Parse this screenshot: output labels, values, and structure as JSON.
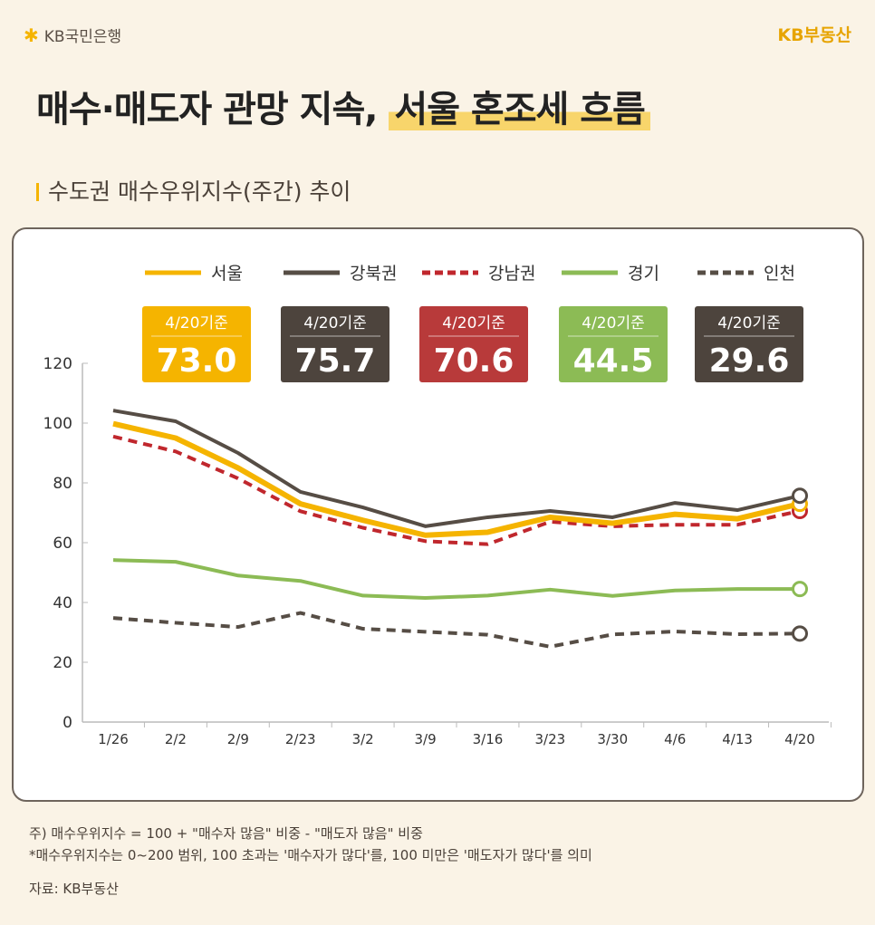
{
  "header": {
    "brand_left": "KB국민은행",
    "brand_right": "KB부동산"
  },
  "title": {
    "main": "매수·매도자 관망 지속,",
    "highlight": "서울 혼조세 흐름"
  },
  "subtitle": "수도권 매수우위지수(주간) 추이",
  "chart_data": {
    "type": "line",
    "categories": [
      "1/26",
      "2/2",
      "2/9",
      "2/23",
      "3/2",
      "3/9",
      "3/16",
      "3/23",
      "3/30",
      "4/6",
      "4/13",
      "4/20"
    ],
    "ylim": [
      0,
      120
    ],
    "yticks": [
      0,
      20,
      40,
      60,
      80,
      100,
      120
    ],
    "legend_placement": "top",
    "series": [
      {
        "name": "서울",
        "color": "#f5b400",
        "dash": false,
        "values": [
          99.8,
          95,
          85,
          73,
          67.5,
          62.5,
          63.5,
          68.5,
          66.5,
          69.5,
          68,
          73.0
        ],
        "badge_label": "4/20기준",
        "badge_value": "73.0",
        "badge_color": "#f5b400"
      },
      {
        "name": "강북권",
        "color": "#564d45",
        "dash": false,
        "values": [
          104.2,
          100.6,
          90,
          77,
          71.8,
          65.5,
          68.5,
          70.6,
          68.5,
          73.3,
          70.9,
          75.7
        ],
        "badge_label": "4/20기준",
        "badge_value": "75.7",
        "badge_color": "#4d443d"
      },
      {
        "name": "강남권",
        "color": "#c0272d",
        "dash": true,
        "values": [
          95.5,
          90.5,
          81.5,
          70.5,
          65,
          60.5,
          59.5,
          67,
          65.5,
          66,
          66,
          70.6
        ],
        "badge_label": "4/20기준",
        "badge_value": "70.6",
        "badge_color": "#b83a3a"
      },
      {
        "name": "경기",
        "color": "#8cbb55",
        "dash": false,
        "values": [
          54.2,
          53.6,
          49,
          47.2,
          42.3,
          41.5,
          42.3,
          44.3,
          42.2,
          44,
          44.5,
          44.5
        ],
        "badge_label": "4/20기준",
        "badge_value": "44.5",
        "badge_color": "#8cbb55"
      },
      {
        "name": "인천",
        "color": "#564d45",
        "dash": true,
        "values": [
          34.8,
          33.2,
          31.8,
          36.5,
          31.2,
          30.2,
          29.2,
          25.2,
          29.3,
          30.3,
          29.4,
          29.6
        ],
        "badge_label": "4/20기준",
        "badge_value": "29.6",
        "badge_color": "#4d443d"
      }
    ]
  },
  "notes": [
    "주) 매수우위지수 = 100 + \"매수자 많음\" 비중 - \"매도자 많음\" 비중",
    "*매수우위지수는 0~200 범위, 100 초과는 '매수자가 많다'를, 100 미만은 '매도자가 많다'를 의미"
  ],
  "source": "자료: KB부동산"
}
